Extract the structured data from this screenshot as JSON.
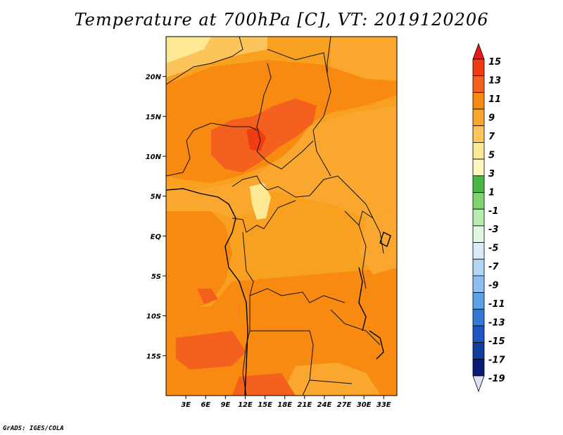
{
  "title": "Temperature at 700hPa [C], VT: 2019120206",
  "footer": "GrADS: IGES/COLA",
  "chart_data": {
    "type": "heatmap",
    "variable": "Temperature",
    "level": "700hPa",
    "unit": "C",
    "valid_time": "2019120206",
    "lon_range": [
      0,
      35
    ],
    "lat_range": [
      -20,
      25
    ],
    "x_ticks": [
      "3E",
      "6E",
      "9E",
      "12E",
      "15E",
      "18E",
      "21E",
      "24E",
      "27E",
      "30E",
      "33E"
    ],
    "x_tick_values": [
      3,
      6,
      9,
      12,
      15,
      18,
      21,
      24,
      27,
      30,
      33
    ],
    "y_ticks": [
      "20N",
      "15N",
      "10N",
      "5N",
      "EQ",
      "5S",
      "10S",
      "15S"
    ],
    "y_tick_values": [
      20,
      15,
      10,
      5,
      0,
      -5,
      -10,
      -15
    ],
    "colorbar_labels": [
      "15",
      "13",
      "11",
      "9",
      "7",
      "5",
      "3",
      "1",
      "-1",
      "-3",
      "-5",
      "-7",
      "-9",
      "-11",
      "-13",
      "-15",
      "-17",
      "-19"
    ],
    "colorbar_colors": [
      "#e41a1c",
      "#f03c10",
      "#f4601e",
      "#f88a12",
      "#f9a72e",
      "#fbc55c",
      "#fde893",
      "#fff6c0",
      "#49b848",
      "#7fd36f",
      "#b8ecb0",
      "#e0f6e0",
      "#d9ecf8",
      "#b0d6f4",
      "#8ec0ef",
      "#5da2e6",
      "#3478d6",
      "#1f55c2",
      "#123d9d",
      "#0a1c73",
      "#e0e0f4"
    ]
  }
}
